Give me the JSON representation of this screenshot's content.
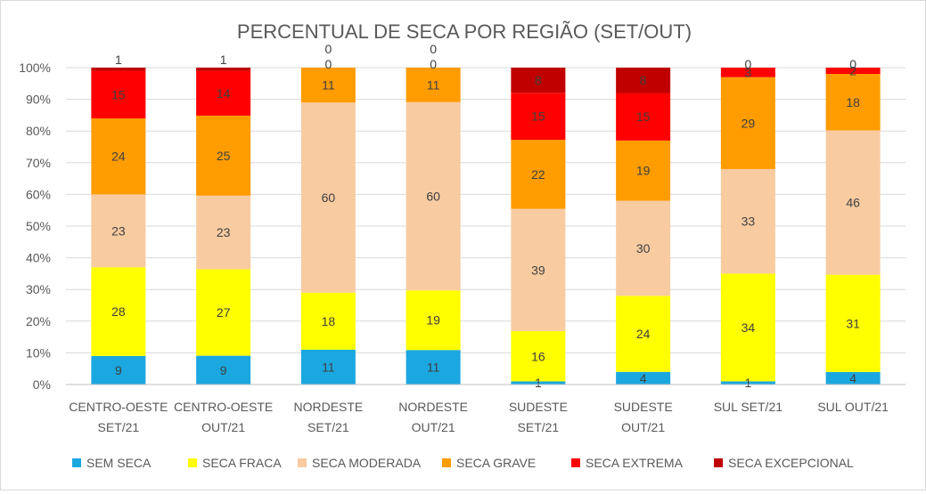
{
  "chart_data": {
    "type": "bar",
    "stacked": true,
    "title": "PERCENTUAL DE SECA POR REGIÃO (SET/OUT)",
    "xlabel": "",
    "ylabel": "",
    "ylim": [
      0,
      100
    ],
    "y_ticks": [
      "0%",
      "10%",
      "20%",
      "30%",
      "40%",
      "50%",
      "60%",
      "70%",
      "80%",
      "90%",
      "100%"
    ],
    "categories": [
      [
        "CENTRO-OESTE",
        "SET/21"
      ],
      [
        "CENTRO-OESTE",
        "OUT/21"
      ],
      [
        "NORDESTE",
        "SET/21"
      ],
      [
        "NORDESTE",
        "OUT/21"
      ],
      [
        "SUDESTE",
        "SET/21"
      ],
      [
        "SUDESTE",
        "OUT/21"
      ],
      [
        "SUL SET/21"
      ],
      [
        "SUL OUT/21"
      ]
    ],
    "series": [
      {
        "name": "SEM SECA",
        "color": "#1ba8e0",
        "values": [
          9,
          9,
          11,
          11,
          1,
          4,
          1,
          4
        ]
      },
      {
        "name": "SECA FRACA",
        "color": "#ffff00",
        "values": [
          28,
          27,
          18,
          19,
          16,
          24,
          34,
          31
        ]
      },
      {
        "name": "SECA MODERADA",
        "color": "#f8cba1",
        "values": [
          23,
          23,
          60,
          60,
          39,
          30,
          33,
          46
        ]
      },
      {
        "name": "SECA GRAVE",
        "color": "#ff9c00",
        "values": [
          24,
          25,
          11,
          11,
          22,
          19,
          29,
          18
        ]
      },
      {
        "name": "SECA EXTREMA",
        "color": "#ff0000",
        "values": [
          15,
          14,
          0,
          0,
          15,
          15,
          3,
          2
        ]
      },
      {
        "name": "SECA EXCEPCIONAL",
        "color": "#c00000",
        "values": [
          1,
          1,
          0,
          0,
          8,
          8,
          0,
          0
        ]
      }
    ],
    "grid": true,
    "legend": "bottom"
  }
}
